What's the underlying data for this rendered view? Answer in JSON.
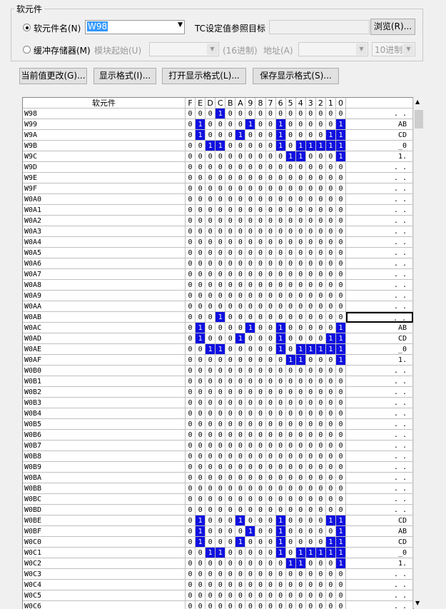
{
  "group": {
    "title": "软元件",
    "device_name_label": "软元件名(N)",
    "device_name_value": "W98",
    "tc_label": "TC设定值参照目标",
    "browse_button": "浏览(R)...",
    "buffer_label": "缓冲存储器(M)",
    "module_start_label": "模块起始(U)",
    "hex_label": "(16进制)",
    "address_label": "地址(A)",
    "radix_value": "10进制"
  },
  "buttons": [
    "当前值更改(G)...",
    "显示格式(I)...",
    "打开显示格式(L)...",
    "保存显示格式(S)..."
  ],
  "table": {
    "device_header": "软元件",
    "bit_headers": [
      "F",
      "E",
      "D",
      "C",
      "B",
      "A",
      "9",
      "8",
      "7",
      "6",
      "5",
      "4",
      "3",
      "2",
      "1",
      "0"
    ],
    "rows": [
      {
        "device": "W98",
        "bits": [
          0,
          0,
          0,
          1,
          0,
          0,
          0,
          0,
          0,
          0,
          0,
          0,
          0,
          0,
          0,
          0
        ],
        "text": ". ."
      },
      {
        "device": "W99",
        "bits": [
          0,
          1,
          0,
          0,
          0,
          0,
          1,
          0,
          0,
          1,
          0,
          0,
          0,
          0,
          0,
          1
        ],
        "text": "AB"
      },
      {
        "device": "W9A",
        "bits": [
          0,
          1,
          0,
          0,
          0,
          1,
          0,
          0,
          0,
          1,
          0,
          0,
          0,
          0,
          1,
          1
        ],
        "text": "CD"
      },
      {
        "device": "W9B",
        "bits": [
          0,
          0,
          1,
          1,
          0,
          0,
          0,
          0,
          0,
          1,
          0,
          1,
          1,
          1,
          1,
          1
        ],
        "text": "_0"
      },
      {
        "device": "W9C",
        "bits": [
          0,
          0,
          0,
          0,
          0,
          0,
          0,
          0,
          0,
          0,
          1,
          1,
          0,
          0,
          0,
          1
        ],
        "text": "1."
      },
      {
        "device": "W9D",
        "bits": [
          0,
          0,
          0,
          0,
          0,
          0,
          0,
          0,
          0,
          0,
          0,
          0,
          0,
          0,
          0,
          0
        ],
        "text": ". ."
      },
      {
        "device": "W9E",
        "bits": [
          0,
          0,
          0,
          0,
          0,
          0,
          0,
          0,
          0,
          0,
          0,
          0,
          0,
          0,
          0,
          0
        ],
        "text": ". ."
      },
      {
        "device": "W9F",
        "bits": [
          0,
          0,
          0,
          0,
          0,
          0,
          0,
          0,
          0,
          0,
          0,
          0,
          0,
          0,
          0,
          0
        ],
        "text": ". ."
      },
      {
        "device": "W0A0",
        "bits": [
          0,
          0,
          0,
          0,
          0,
          0,
          0,
          0,
          0,
          0,
          0,
          0,
          0,
          0,
          0,
          0
        ],
        "text": ". ."
      },
      {
        "device": "W0A1",
        "bits": [
          0,
          0,
          0,
          0,
          0,
          0,
          0,
          0,
          0,
          0,
          0,
          0,
          0,
          0,
          0,
          0
        ],
        "text": ". ."
      },
      {
        "device": "W0A2",
        "bits": [
          0,
          0,
          0,
          0,
          0,
          0,
          0,
          0,
          0,
          0,
          0,
          0,
          0,
          0,
          0,
          0
        ],
        "text": ". ."
      },
      {
        "device": "W0A3",
        "bits": [
          0,
          0,
          0,
          0,
          0,
          0,
          0,
          0,
          0,
          0,
          0,
          0,
          0,
          0,
          0,
          0
        ],
        "text": ". ."
      },
      {
        "device": "W0A4",
        "bits": [
          0,
          0,
          0,
          0,
          0,
          0,
          0,
          0,
          0,
          0,
          0,
          0,
          0,
          0,
          0,
          0
        ],
        "text": ". ."
      },
      {
        "device": "W0A5",
        "bits": [
          0,
          0,
          0,
          0,
          0,
          0,
          0,
          0,
          0,
          0,
          0,
          0,
          0,
          0,
          0,
          0
        ],
        "text": ". ."
      },
      {
        "device": "W0A6",
        "bits": [
          0,
          0,
          0,
          0,
          0,
          0,
          0,
          0,
          0,
          0,
          0,
          0,
          0,
          0,
          0,
          0
        ],
        "text": ". ."
      },
      {
        "device": "W0A7",
        "bits": [
          0,
          0,
          0,
          0,
          0,
          0,
          0,
          0,
          0,
          0,
          0,
          0,
          0,
          0,
          0,
          0
        ],
        "text": ". ."
      },
      {
        "device": "W0A8",
        "bits": [
          0,
          0,
          0,
          0,
          0,
          0,
          0,
          0,
          0,
          0,
          0,
          0,
          0,
          0,
          0,
          0
        ],
        "text": ". ."
      },
      {
        "device": "W0A9",
        "bits": [
          0,
          0,
          0,
          0,
          0,
          0,
          0,
          0,
          0,
          0,
          0,
          0,
          0,
          0,
          0,
          0
        ],
        "text": ". ."
      },
      {
        "device": "W0AA",
        "bits": [
          0,
          0,
          0,
          0,
          0,
          0,
          0,
          0,
          0,
          0,
          0,
          0,
          0,
          0,
          0,
          0
        ],
        "text": ". ."
      },
      {
        "device": "W0AB",
        "bits": [
          0,
          0,
          0,
          1,
          0,
          0,
          0,
          0,
          0,
          0,
          0,
          0,
          0,
          0,
          0,
          0
        ],
        "text": ". ."
      },
      {
        "device": "W0AC",
        "bits": [
          0,
          1,
          0,
          0,
          0,
          0,
          1,
          0,
          0,
          1,
          0,
          0,
          0,
          0,
          0,
          1
        ],
        "text": "AB"
      },
      {
        "device": "W0AD",
        "bits": [
          0,
          1,
          0,
          0,
          0,
          1,
          0,
          0,
          0,
          1,
          0,
          0,
          0,
          0,
          1,
          1
        ],
        "text": "CD"
      },
      {
        "device": "W0AE",
        "bits": [
          0,
          0,
          1,
          1,
          0,
          0,
          0,
          0,
          0,
          1,
          0,
          1,
          1,
          1,
          1,
          1
        ],
        "text": "_0"
      },
      {
        "device": "W0AF",
        "bits": [
          0,
          0,
          0,
          0,
          0,
          0,
          0,
          0,
          0,
          0,
          1,
          1,
          0,
          0,
          0,
          1
        ],
        "text": "1."
      },
      {
        "device": "W0B0",
        "bits": [
          0,
          0,
          0,
          0,
          0,
          0,
          0,
          0,
          0,
          0,
          0,
          0,
          0,
          0,
          0,
          0
        ],
        "text": ". ."
      },
      {
        "device": "W0B1",
        "bits": [
          0,
          0,
          0,
          0,
          0,
          0,
          0,
          0,
          0,
          0,
          0,
          0,
          0,
          0,
          0,
          0
        ],
        "text": ". ."
      },
      {
        "device": "W0B2",
        "bits": [
          0,
          0,
          0,
          0,
          0,
          0,
          0,
          0,
          0,
          0,
          0,
          0,
          0,
          0,
          0,
          0
        ],
        "text": ". ."
      },
      {
        "device": "W0B3",
        "bits": [
          0,
          0,
          0,
          0,
          0,
          0,
          0,
          0,
          0,
          0,
          0,
          0,
          0,
          0,
          0,
          0
        ],
        "text": ". ."
      },
      {
        "device": "W0B4",
        "bits": [
          0,
          0,
          0,
          0,
          0,
          0,
          0,
          0,
          0,
          0,
          0,
          0,
          0,
          0,
          0,
          0
        ],
        "text": ". ."
      },
      {
        "device": "W0B5",
        "bits": [
          0,
          0,
          0,
          0,
          0,
          0,
          0,
          0,
          0,
          0,
          0,
          0,
          0,
          0,
          0,
          0
        ],
        "text": ". ."
      },
      {
        "device": "W0B6",
        "bits": [
          0,
          0,
          0,
          0,
          0,
          0,
          0,
          0,
          0,
          0,
          0,
          0,
          0,
          0,
          0,
          0
        ],
        "text": ". ."
      },
      {
        "device": "W0B7",
        "bits": [
          0,
          0,
          0,
          0,
          0,
          0,
          0,
          0,
          0,
          0,
          0,
          0,
          0,
          0,
          0,
          0
        ],
        "text": ". ."
      },
      {
        "device": "W0B8",
        "bits": [
          0,
          0,
          0,
          0,
          0,
          0,
          0,
          0,
          0,
          0,
          0,
          0,
          0,
          0,
          0,
          0
        ],
        "text": ". ."
      },
      {
        "device": "W0B9",
        "bits": [
          0,
          0,
          0,
          0,
          0,
          0,
          0,
          0,
          0,
          0,
          0,
          0,
          0,
          0,
          0,
          0
        ],
        "text": ". ."
      },
      {
        "device": "W0BA",
        "bits": [
          0,
          0,
          0,
          0,
          0,
          0,
          0,
          0,
          0,
          0,
          0,
          0,
          0,
          0,
          0,
          0
        ],
        "text": ". ."
      },
      {
        "device": "W0BB",
        "bits": [
          0,
          0,
          0,
          0,
          0,
          0,
          0,
          0,
          0,
          0,
          0,
          0,
          0,
          0,
          0,
          0
        ],
        "text": ". ."
      },
      {
        "device": "W0BC",
        "bits": [
          0,
          0,
          0,
          0,
          0,
          0,
          0,
          0,
          0,
          0,
          0,
          0,
          0,
          0,
          0,
          0
        ],
        "text": ". ."
      },
      {
        "device": "W0BD",
        "bits": [
          0,
          0,
          0,
          0,
          0,
          0,
          0,
          0,
          0,
          0,
          0,
          0,
          0,
          0,
          0,
          0
        ],
        "text": ". ."
      },
      {
        "device": "W0BE",
        "bits": [
          0,
          1,
          0,
          0,
          0,
          1,
          0,
          0,
          0,
          1,
          0,
          0,
          0,
          0,
          1,
          1
        ],
        "text": "CD"
      },
      {
        "device": "W0BF",
        "bits": [
          0,
          1,
          0,
          0,
          0,
          0,
          1,
          0,
          0,
          1,
          0,
          0,
          0,
          0,
          0,
          1
        ],
        "text": "AB"
      },
      {
        "device": "W0C0",
        "bits": [
          0,
          1,
          0,
          0,
          0,
          1,
          0,
          0,
          0,
          1,
          0,
          0,
          0,
          0,
          1,
          1
        ],
        "text": "CD"
      },
      {
        "device": "W0C1",
        "bits": [
          0,
          0,
          1,
          1,
          0,
          0,
          0,
          0,
          0,
          1,
          0,
          1,
          1,
          1,
          1,
          1
        ],
        "text": "_0"
      },
      {
        "device": "W0C2",
        "bits": [
          0,
          0,
          0,
          0,
          0,
          0,
          0,
          0,
          0,
          0,
          1,
          1,
          0,
          0,
          0,
          1
        ],
        "text": "1."
      },
      {
        "device": "W0C3",
        "bits": [
          0,
          0,
          0,
          0,
          0,
          0,
          0,
          0,
          0,
          0,
          0,
          0,
          0,
          0,
          0,
          0
        ],
        "text": ". ."
      },
      {
        "device": "W0C4",
        "bits": [
          0,
          0,
          0,
          0,
          0,
          0,
          0,
          0,
          0,
          0,
          0,
          0,
          0,
          0,
          0,
          0
        ],
        "text": ". ."
      },
      {
        "device": "W0C5",
        "bits": [
          0,
          0,
          0,
          0,
          0,
          0,
          0,
          0,
          0,
          0,
          0,
          0,
          0,
          0,
          0,
          0
        ],
        "text": ". ."
      },
      {
        "device": "W0C6",
        "bits": [
          0,
          0,
          0,
          0,
          0,
          0,
          0,
          0,
          0,
          0,
          0,
          0,
          0,
          0,
          0,
          0
        ],
        "text": ". ."
      }
    ]
  }
}
